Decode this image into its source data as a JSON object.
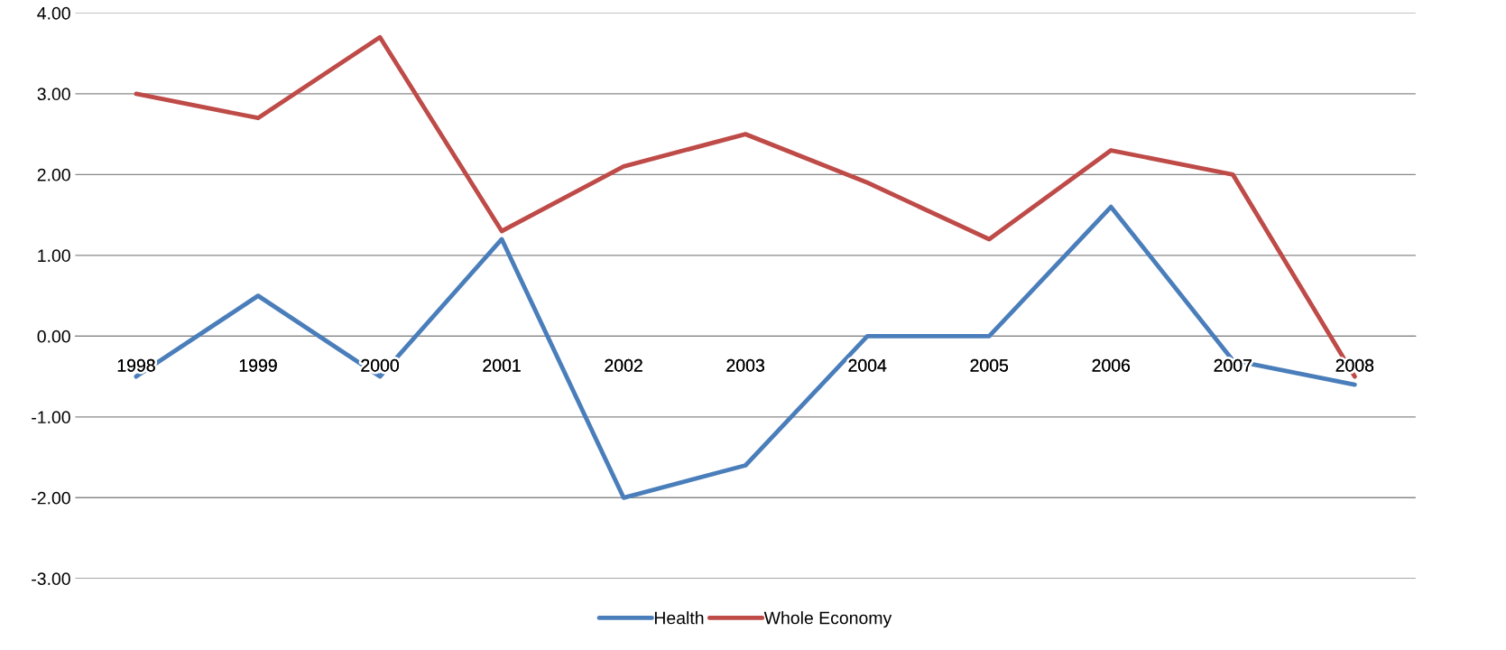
{
  "chart_data": {
    "type": "line",
    "categories": [
      "1998",
      "1999",
      "2000",
      "2001",
      "2002",
      "2003",
      "2004",
      "2005",
      "2006",
      "2007",
      "2008"
    ],
    "series": [
      {
        "name": "Health",
        "color": "#4a7ebb",
        "values": [
          -0.5,
          0.5,
          -0.5,
          1.2,
          -2.0,
          -1.6,
          0.0,
          0.0,
          1.6,
          -0.3,
          -0.6
        ]
      },
      {
        "name": "Whole Economy",
        "color": "#be4b48",
        "values": [
          3.0,
          2.7,
          3.7,
          1.3,
          2.1,
          2.5,
          1.9,
          1.2,
          2.3,
          2.0,
          -0.5
        ]
      }
    ],
    "ylim": [
      -3,
      4
    ],
    "yticks": [
      {
        "value": -3,
        "label": "-3.00"
      },
      {
        "value": -2,
        "label": "-2.00"
      },
      {
        "value": -1,
        "label": "-1.00"
      },
      {
        "value": 0,
        "label": "0.00"
      },
      {
        "value": 1,
        "label": "1.00"
      },
      {
        "value": 2,
        "label": "2.00"
      },
      {
        "value": 3,
        "label": "3.00"
      },
      {
        "value": 4,
        "label": "4.00"
      }
    ],
    "grid": "y",
    "legend": "bottom",
    "marker": "none",
    "line_style": "solid"
  }
}
